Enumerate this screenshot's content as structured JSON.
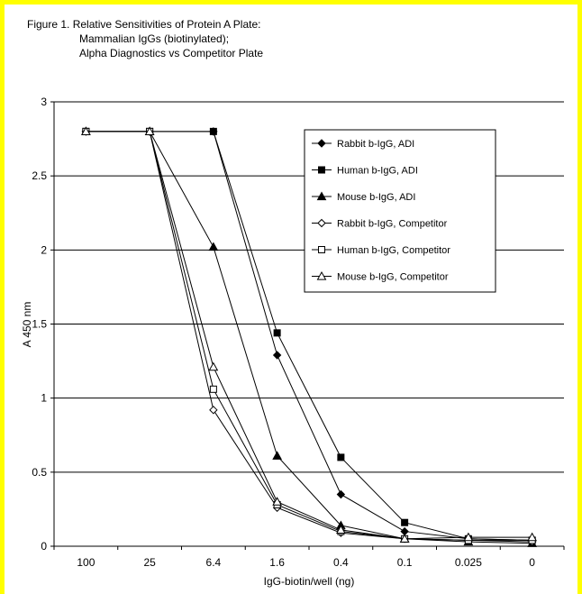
{
  "figure": {
    "title_line1": "Figure 1. Relative Sensitivities of Protein A Plate:",
    "title_line2": "Mammalian IgGs (biotinylated);",
    "title_line3": "Alpha Diagnostics vs Competitor Plate"
  },
  "colors": {
    "border": "#ffff00",
    "line": "#000000",
    "marker_fill_solid": "#000000",
    "marker_fill_open": "#ffffff"
  },
  "chart_data": {
    "type": "line",
    "xlabel": "IgG-biotin/well (ng)",
    "ylabel": "A 450 nm",
    "categories": [
      "100",
      "25",
      "6.4",
      "1.6",
      "0.4",
      "0.1",
      "0.025",
      "0"
    ],
    "ylim": [
      0,
      3
    ],
    "yticks": [
      "0",
      "0.5",
      "1",
      "1.5",
      "2",
      "2.5",
      "3"
    ],
    "grid": "horizontal",
    "legend_position": "top-right",
    "series": [
      {
        "name": "Rabbit b-IgG, ADI",
        "marker": "diamond",
        "filled": true,
        "values": [
          2.8,
          2.8,
          2.8,
          1.29,
          0.35,
          0.1,
          0.05,
          0.04
        ]
      },
      {
        "name": "Human b-IgG, ADI",
        "marker": "square",
        "filled": true,
        "values": [
          2.8,
          2.8,
          2.8,
          1.44,
          0.6,
          0.16,
          0.05,
          0.04
        ]
      },
      {
        "name": "Mouse b-IgG, ADI",
        "marker": "triangle",
        "filled": true,
        "values": [
          2.8,
          2.8,
          2.02,
          0.61,
          0.14,
          0.05,
          0.03,
          0.02
        ]
      },
      {
        "name": "Rabbit b-IgG, Competitor",
        "marker": "diamond",
        "filled": false,
        "values": [
          2.8,
          2.8,
          0.92,
          0.26,
          0.09,
          0.05,
          0.04,
          0.03
        ]
      },
      {
        "name": "Human b-IgG, Competitor",
        "marker": "square",
        "filled": false,
        "values": [
          2.8,
          2.8,
          1.06,
          0.28,
          0.1,
          0.05,
          0.04,
          0.04
        ]
      },
      {
        "name": "Mouse b-IgG, Competitor",
        "marker": "triangle",
        "filled": false,
        "values": [
          2.8,
          2.8,
          1.21,
          0.3,
          0.11,
          0.05,
          0.06,
          0.06
        ]
      }
    ]
  }
}
